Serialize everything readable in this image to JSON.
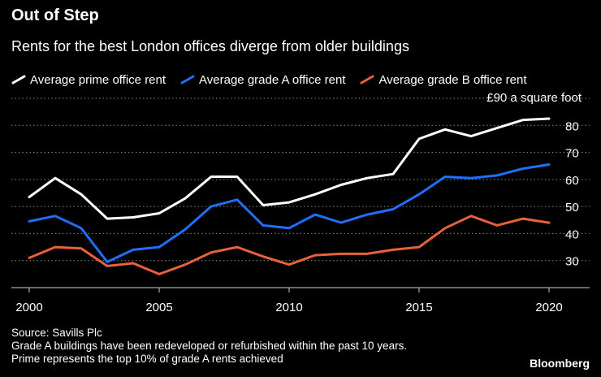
{
  "header": {
    "title": "Out of Step",
    "subtitle": "Rents for the best London offices diverge from older buildings"
  },
  "unit_label": "£90 a square foot",
  "footer": {
    "source": "Source: Savills Plc",
    "note1": "Grade A buildings have been redeveloped or refurbished within the past 10 years.",
    "note2": "Prime represents the top 10% of grade A rents achieved"
  },
  "brand": "Bloomberg",
  "colors": {
    "background": "#000000",
    "prime": "#ffffff",
    "gradeA": "#1f6fff",
    "gradeB": "#e8613a",
    "grid": "#8a8a8a",
    "text": "#ffffff"
  },
  "chart_data": {
    "type": "line",
    "title": "Out of Step",
    "subtitle": "Rents for the best London offices diverge from older buildings",
    "xlabel": "",
    "ylabel": "£ a square foot",
    "x": [
      2000,
      2001,
      2002,
      2003,
      2004,
      2005,
      2006,
      2007,
      2008,
      2009,
      2010,
      2011,
      2012,
      2013,
      2014,
      2015,
      2016,
      2017,
      2018,
      2019,
      2020
    ],
    "xlim": [
      2000,
      2020
    ],
    "ylim": [
      20,
      90
    ],
    "xticks": [
      2000,
      2005,
      2010,
      2015,
      2020
    ],
    "yticks": [
      30,
      40,
      50,
      60,
      70,
      80
    ],
    "grid": true,
    "legend_position": "top",
    "series": [
      {
        "name": "Average prime office rent",
        "key": "prime",
        "values": [
          53.5,
          60.5,
          54.5,
          45.5,
          46.0,
          47.5,
          53.0,
          61.0,
          61.0,
          50.5,
          51.5,
          54.5,
          58.0,
          60.5,
          62.0,
          75.0,
          78.5,
          76.0,
          79.0,
          82.0,
          82.5
        ]
      },
      {
        "name": "Average grade A office rent",
        "key": "gradeA",
        "values": [
          44.5,
          46.5,
          42.0,
          29.5,
          34.0,
          35.0,
          41.5,
          50.0,
          52.5,
          43.0,
          42.0,
          47.0,
          44.0,
          47.0,
          49.0,
          54.5,
          61.0,
          60.5,
          61.5,
          64.0,
          65.5
        ]
      },
      {
        "name": "Average grade B office rent",
        "key": "gradeB",
        "values": [
          31.0,
          35.0,
          34.5,
          28.0,
          29.0,
          25.0,
          28.5,
          33.0,
          35.0,
          31.5,
          28.5,
          32.0,
          32.5,
          32.5,
          34.0,
          35.0,
          42.0,
          46.5,
          43.0,
          45.5,
          44.0
        ]
      }
    ]
  }
}
